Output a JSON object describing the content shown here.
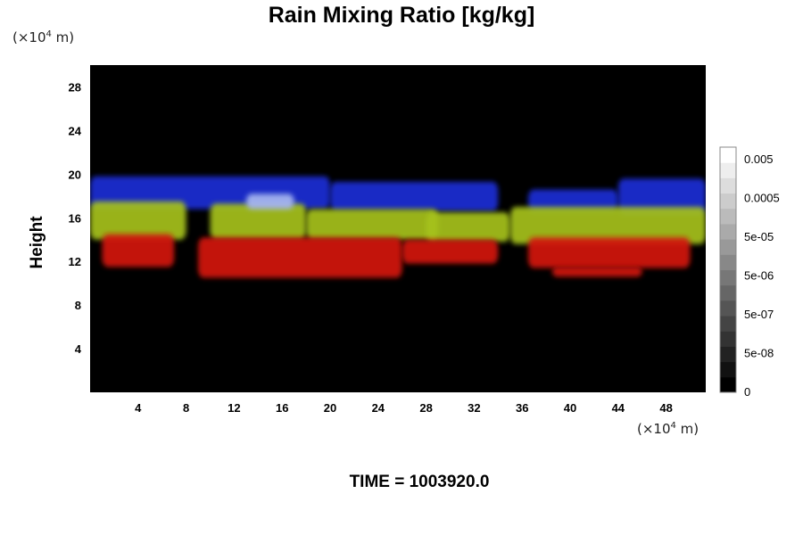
{
  "chart_data": {
    "type": "heatmap",
    "title": "Rain Mixing Ratio [kg/kg]",
    "ylabel": "Height",
    "x_unit": {
      "prefix": "(×10",
      "exp": "4",
      "suffix": " m)"
    },
    "y_unit": {
      "prefix": "(×10",
      "exp": "4",
      "suffix": " m)"
    },
    "xlim": [
      0,
      51.3
    ],
    "ylim": [
      0,
      30
    ],
    "x_ticks": [
      4,
      8,
      12,
      16,
      20,
      24,
      28,
      32,
      36,
      40,
      44,
      48
    ],
    "y_ticks": [
      4,
      8,
      12,
      16,
      20,
      24,
      28
    ],
    "background_color": "#000000",
    "layers": [
      {
        "color": "#1c2fd6",
        "bands": [
          {
            "x0": 0.0,
            "x1": 20.0,
            "y_low": 16.8,
            "y_high": 19.8
          },
          {
            "x0": 20.0,
            "x1": 34.0,
            "y_low": 16.6,
            "y_high": 19.3
          },
          {
            "x0": 36.5,
            "x1": 44.0,
            "y_low": 16.5,
            "y_high": 18.6
          },
          {
            "x0": 44.0,
            "x1": 51.3,
            "y_low": 16.3,
            "y_high": 19.6
          }
        ]
      },
      {
        "color": "#a6c21a",
        "bands": [
          {
            "x0": 0.0,
            "x1": 8.0,
            "y_low": 14.0,
            "y_high": 17.5
          },
          {
            "x0": 10.0,
            "x1": 18.0,
            "y_low": 14.0,
            "y_high": 17.3
          },
          {
            "x0": 18.0,
            "x1": 29.0,
            "y_low": 14.0,
            "y_high": 16.8
          },
          {
            "x0": 28.0,
            "x1": 35.0,
            "y_low": 13.8,
            "y_high": 16.5
          },
          {
            "x0": 35.0,
            "x1": 51.3,
            "y_low": 13.6,
            "y_high": 17.0
          }
        ]
      },
      {
        "color": "#d4140f",
        "bands": [
          {
            "x0": 1.0,
            "x1": 7.0,
            "y_low": 11.5,
            "y_high": 14.5
          },
          {
            "x0": 9.0,
            "x1": 26.0,
            "y_low": 10.5,
            "y_high": 14.2
          },
          {
            "x0": 26.0,
            "x1": 34.0,
            "y_low": 11.8,
            "y_high": 14.0
          },
          {
            "x0": 36.5,
            "x1": 50.0,
            "y_low": 11.4,
            "y_high": 14.2
          },
          {
            "x0": 38.5,
            "x1": 46.0,
            "y_low": 10.6,
            "y_high": 11.5
          }
        ]
      },
      {
        "color": "#a8b8f0",
        "bands": [
          {
            "x0": 13.0,
            "x1": 17.0,
            "y_low": 16.8,
            "y_high": 18.2
          }
        ]
      }
    ]
  },
  "colorbar": {
    "labels": [
      "0.005",
      "0.0005",
      "5e-05",
      "5e-06",
      "5e-07",
      "5e-08",
      "0"
    ],
    "levels": 16,
    "colors": [
      "#000000",
      "#ffffff"
    ]
  },
  "footer": {
    "time_label": "TIME = 1003920.0"
  }
}
